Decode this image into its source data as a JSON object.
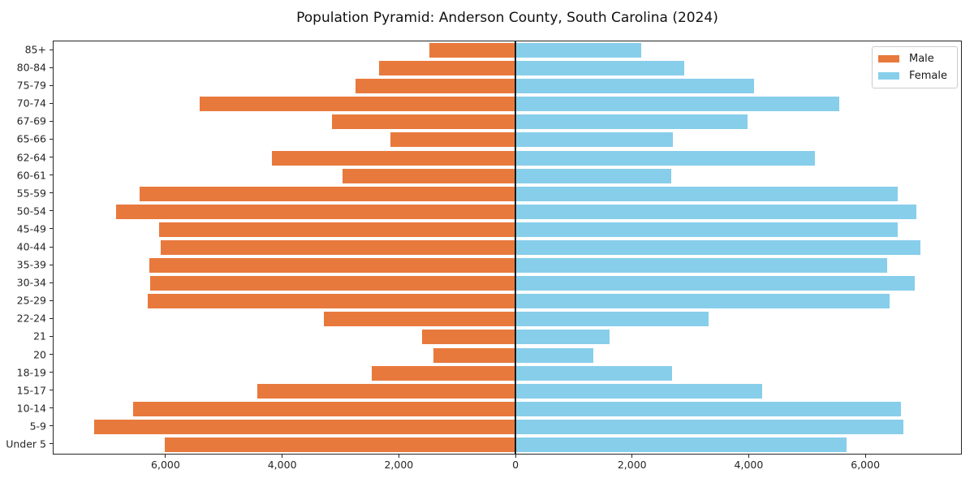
{
  "title": "Population Pyramid: Anderson County, South Carolina (2024)",
  "legend": {
    "male_label": "Male",
    "female_label": "Female"
  },
  "colors": {
    "male": "#e8793d",
    "female": "#87ceeb",
    "axis": "#262626",
    "zero_line": "#1a1a1a",
    "legend_border": "#cccccc"
  },
  "chart_data": {
    "type": "bar",
    "variant": "population-pyramid",
    "title": "Population Pyramid: Anderson County, South Carolina (2024)",
    "xlabel": "",
    "ylabel": "",
    "grid": false,
    "legend_position": "upper right",
    "categories": [
      "85+",
      "80-84",
      "75-79",
      "70-74",
      "67-69",
      "65-66",
      "62-64",
      "60-61",
      "55-59",
      "50-54",
      "45-49",
      "40-44",
      "35-39",
      "30-34",
      "25-29",
      "22-24",
      "21",
      "20",
      "18-19",
      "15-17",
      "10-14",
      "5-9",
      "Under 5"
    ],
    "series": [
      {
        "name": "Male",
        "side": "left",
        "color": "#e8793d",
        "values": [
          1480,
          2340,
          2740,
          5420,
          3150,
          2150,
          4180,
          2960,
          6440,
          6850,
          6110,
          6080,
          6280,
          6270,
          6310,
          3280,
          1600,
          1400,
          2470,
          4430,
          6550,
          7220,
          6010
        ]
      },
      {
        "name": "Female",
        "side": "right",
        "color": "#87ceeb",
        "values": [
          2160,
          2890,
          4090,
          5550,
          3980,
          2700,
          5140,
          2670,
          6550,
          6880,
          6550,
          6950,
          6380,
          6840,
          6420,
          3310,
          1610,
          1340,
          2680,
          4230,
          6610,
          6650,
          5680
        ]
      }
    ],
    "xlim": [
      -7920,
      7640
    ],
    "xticks": {
      "values": [
        -6000,
        -4000,
        -2000,
        0,
        2000,
        4000,
        6000
      ],
      "labels": [
        "6,000",
        "4,000",
        "2,000",
        "0",
        "2,000",
        "4,000",
        "6,000"
      ]
    }
  }
}
